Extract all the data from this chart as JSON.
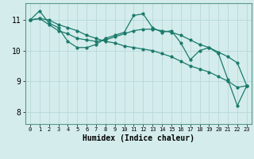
{
  "xlabel": "Humidex (Indice chaleur)",
  "ylabel": "",
  "bg_color": "#d4ecec",
  "grid_color": "#b8d8d8",
  "line_color": "#1a7a6a",
  "xlim": [
    -0.5,
    23.5
  ],
  "ylim": [
    7.6,
    11.55
  ],
  "yticks": [
    8,
    9,
    10,
    11
  ],
  "xticks": [
    0,
    1,
    2,
    3,
    4,
    5,
    6,
    7,
    8,
    9,
    10,
    11,
    12,
    13,
    14,
    15,
    16,
    17,
    18,
    19,
    20,
    21,
    22,
    23
  ],
  "series": [
    [
      0,
      11.0
    ],
    [
      1,
      11.3
    ],
    [
      2,
      10.9
    ],
    [
      3,
      10.75
    ],
    [
      4,
      10.3
    ],
    [
      5,
      10.1
    ],
    [
      6,
      10.1
    ],
    [
      7,
      10.2
    ],
    [
      8,
      10.4
    ],
    [
      9,
      10.5
    ],
    [
      10,
      10.6
    ],
    [
      11,
      11.15
    ],
    [
      12,
      11.2
    ],
    [
      13,
      10.75
    ],
    [
      14,
      10.6
    ],
    [
      15,
      10.65
    ],
    [
      16,
      10.25
    ],
    [
      17,
      9.7
    ],
    [
      18,
      10.0
    ],
    [
      19,
      10.1
    ],
    [
      20,
      9.9
    ],
    [
      21,
      9.05
    ],
    [
      22,
      8.2
    ],
    [
      23,
      8.85
    ]
  ],
  "series2": [
    [
      0,
      11.0
    ],
    [
      1,
      11.05
    ],
    [
      2,
      11.0
    ],
    [
      3,
      10.85
    ],
    [
      4,
      10.75
    ],
    [
      5,
      10.65
    ],
    [
      6,
      10.5
    ],
    [
      7,
      10.4
    ],
    [
      8,
      10.3
    ],
    [
      9,
      10.25
    ],
    [
      10,
      10.15
    ],
    [
      11,
      10.1
    ],
    [
      12,
      10.05
    ],
    [
      13,
      10.0
    ],
    [
      14,
      9.9
    ],
    [
      15,
      9.8
    ],
    [
      16,
      9.65
    ],
    [
      17,
      9.5
    ],
    [
      18,
      9.4
    ],
    [
      19,
      9.3
    ],
    [
      20,
      9.15
    ],
    [
      21,
      9.0
    ],
    [
      22,
      8.8
    ],
    [
      23,
      8.85
    ]
  ],
  "series3": [
    [
      0,
      11.0
    ],
    [
      1,
      11.05
    ],
    [
      2,
      10.85
    ],
    [
      3,
      10.65
    ],
    [
      4,
      10.55
    ],
    [
      5,
      10.4
    ],
    [
      6,
      10.35
    ],
    [
      7,
      10.3
    ],
    [
      8,
      10.35
    ],
    [
      9,
      10.45
    ],
    [
      10,
      10.55
    ],
    [
      11,
      10.65
    ],
    [
      12,
      10.7
    ],
    [
      13,
      10.7
    ],
    [
      14,
      10.65
    ],
    [
      15,
      10.6
    ],
    [
      16,
      10.5
    ],
    [
      17,
      10.35
    ],
    [
      18,
      10.2
    ],
    [
      19,
      10.1
    ],
    [
      20,
      9.95
    ],
    [
      21,
      9.8
    ],
    [
      22,
      9.6
    ],
    [
      23,
      8.85
    ]
  ]
}
